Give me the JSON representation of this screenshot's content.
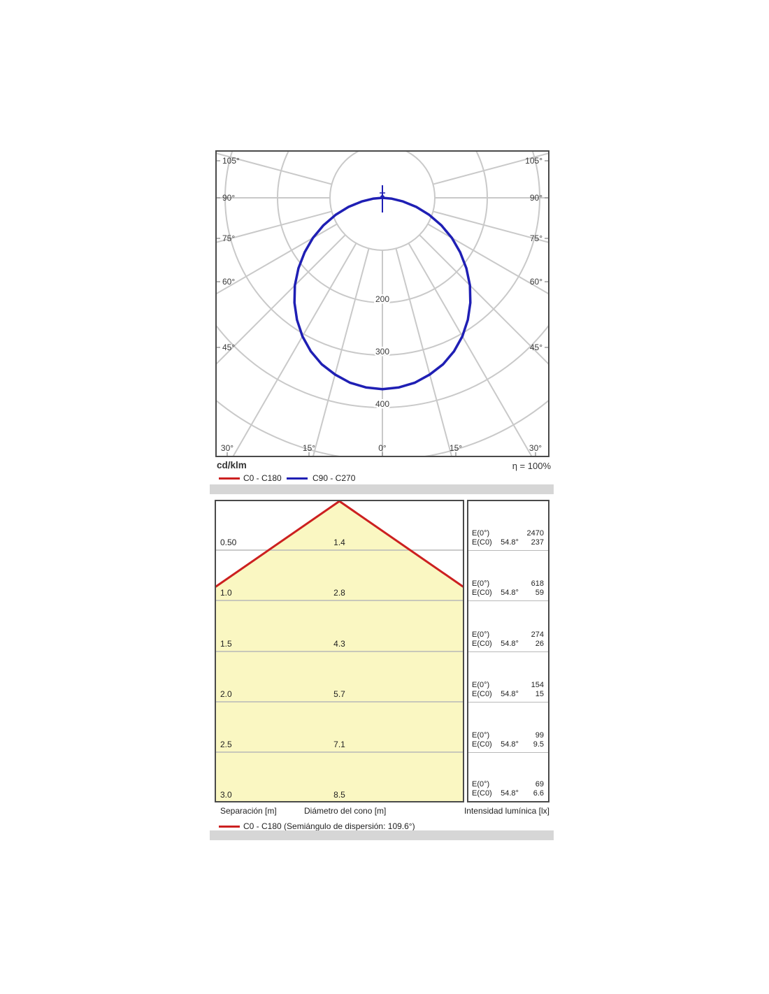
{
  "chart_data": [
    {
      "type": "polar",
      "name": "luminous-intensity-distribution",
      "units": "cd/klm",
      "efficiency": "η = 100%",
      "radial_ticks": [
        100,
        200,
        300,
        400,
        500
      ],
      "radial_tick_labels": [
        "200",
        "300",
        "400"
      ],
      "angle_labels_left": [
        "105°",
        "90°",
        "75°",
        "60°",
        "45°"
      ],
      "angle_labels_right": [
        "105°",
        "90°",
        "75°",
        "60°",
        "45°"
      ],
      "angle_labels_bottom": [
        "30°",
        "15°",
        "0°",
        "15°",
        "30°"
      ],
      "grid_color": "#c9c9c9",
      "series": [
        {
          "name": "C0 - C180",
          "color": "#cc2020",
          "gamma_deg": [
            -90,
            -85,
            -80,
            -75,
            -70,
            -65,
            -60,
            -55,
            -50,
            -45,
            -40,
            -35,
            -30,
            -25,
            -20,
            -15,
            -10,
            -5,
            0,
            5,
            10,
            15,
            20,
            25,
            30,
            35,
            40,
            45,
            50,
            55,
            60,
            65,
            70,
            75,
            80,
            85,
            90
          ],
          "values": [
            0,
            17,
            40,
            67,
            95,
            124,
            153,
            181,
            209,
            236,
            261,
            284,
            305,
            323,
            338,
            349,
            358,
            363,
            365,
            363,
            358,
            349,
            338,
            323,
            305,
            284,
            261,
            236,
            209,
            181,
            153,
            124,
            95,
            67,
            40,
            17,
            0
          ]
        },
        {
          "name": "C90 - C270",
          "color": "#1f1fb4",
          "gamma_deg": [
            -90,
            -85,
            -80,
            -75,
            -70,
            -65,
            -60,
            -55,
            -50,
            -45,
            -40,
            -35,
            -30,
            -25,
            -20,
            -15,
            -10,
            -5,
            0,
            5,
            10,
            15,
            20,
            25,
            30,
            35,
            40,
            45,
            50,
            55,
            60,
            65,
            70,
            75,
            80,
            85,
            90
          ],
          "values": [
            0,
            17,
            40,
            67,
            95,
            124,
            153,
            181,
            209,
            236,
            261,
            284,
            305,
            323,
            338,
            349,
            358,
            363,
            365,
            363,
            358,
            349,
            338,
            323,
            305,
            284,
            261,
            236,
            209,
            181,
            153,
            124,
            95,
            67,
            40,
            17,
            0
          ]
        }
      ]
    },
    {
      "type": "cone-diagram",
      "beam_angle_label": "54.8°",
      "e0_label": "E(0°)",
      "ec0_label": "E(C0)",
      "cone_fill": "#faf7c2",
      "cone_line_color": "#cc2020",
      "rows": [
        {
          "separation_m": "0.50",
          "cone_diameter_m": "1.4",
          "E0_lx": "2470",
          "EC0_lx": "237"
        },
        {
          "separation_m": "1.0",
          "cone_diameter_m": "2.8",
          "E0_lx": "618",
          "EC0_lx": "59"
        },
        {
          "separation_m": "1.5",
          "cone_diameter_m": "4.3",
          "E0_lx": "274",
          "EC0_lx": "26"
        },
        {
          "separation_m": "2.0",
          "cone_diameter_m": "5.7",
          "E0_lx": "154",
          "EC0_lx": "15"
        },
        {
          "separation_m": "2.5",
          "cone_diameter_m": "7.1",
          "E0_lx": "99",
          "EC0_lx": "9.5"
        },
        {
          "separation_m": "3.0",
          "cone_diameter_m": "8.5",
          "E0_lx": "69",
          "EC0_lx": "6.6"
        }
      ],
      "footer_left": "Separación [m]",
      "footer_mid": "Diámetro del cono [m]",
      "footer_right": "Intensidad lumínica [lx]",
      "legend": "C0 - C180 (Semiángulo de dispersión: 109.6°)"
    }
  ]
}
